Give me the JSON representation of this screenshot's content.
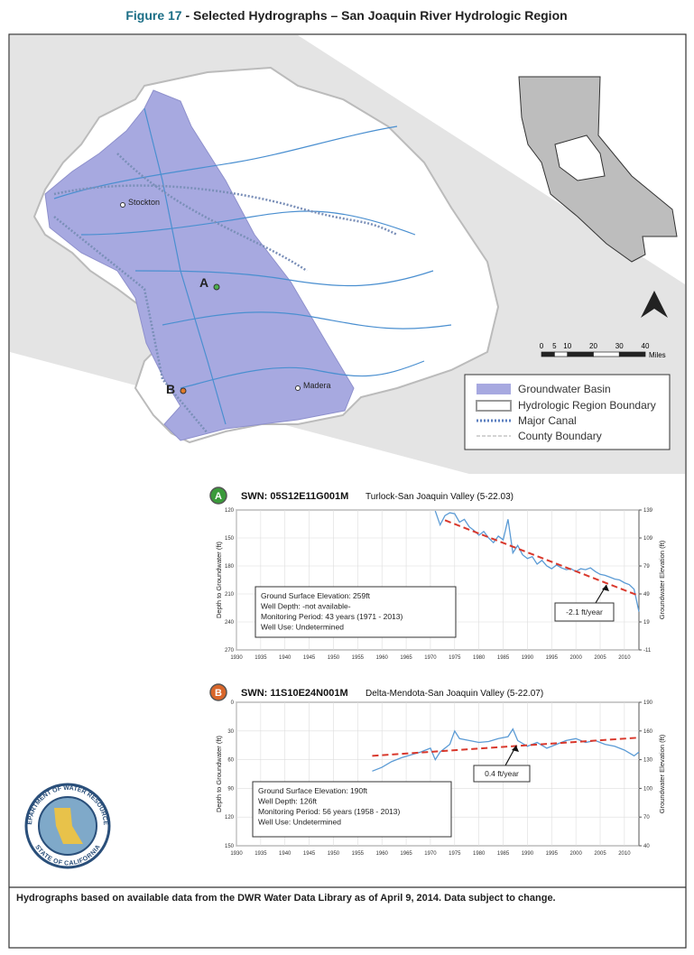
{
  "figure_number": "Figure 17",
  "title": "- Selected Hydrographs – San Joaquin River Hydrologic Region",
  "map": {
    "labels": {
      "stockton": "Stockton",
      "madera": "Madera",
      "a": "A",
      "b": "B"
    },
    "scale": {
      "ticks": [
        0,
        5,
        10,
        20,
        30,
        40
      ],
      "unit": "Miles"
    },
    "legend": [
      "Groundwater Basin",
      "Hydrologic Region Boundary",
      "Major Canal",
      "County Boundary"
    ]
  },
  "chart_data": [
    {
      "type": "line",
      "marker": "A",
      "swn": "SWN: 05S12E11G001M",
      "basin": "Turlock-San Joaquin Valley (5-22.03)",
      "ylabel": "Depth to Groundwater (ft)",
      "y2label": "Groundwater Elevation (ft)",
      "xlim": [
        1930,
        2013
      ],
      "xticks": [
        1930,
        1935,
        1940,
        1945,
        1950,
        1955,
        1960,
        1965,
        1970,
        1975,
        1980,
        1985,
        1990,
        1995,
        2000,
        2005,
        2010
      ],
      "ylim": [
        120,
        270
      ],
      "y_inverted": true,
      "yticks": [
        120,
        150,
        180,
        210,
        240,
        270
      ],
      "y2lim": [
        -11,
        139
      ],
      "y2ticks": [
        139,
        109,
        79,
        49,
        19,
        -11
      ],
      "grid": true,
      "x": [
        1971,
        1972,
        1973,
        1974,
        1975,
        1976,
        1977,
        1978,
        1979,
        1980,
        1981,
        1982,
        1983,
        1984,
        1985,
        1986,
        1987,
        1988,
        1989,
        1990,
        1991,
        1992,
        1993,
        1994,
        1995,
        1996,
        1997,
        1998,
        1999,
        2000,
        2001,
        2002,
        2003,
        2004,
        2005,
        2006,
        2007,
        2008,
        2009,
        2010,
        2011,
        2012,
        2013
      ],
      "series": [
        {
          "color": "#5b9bd5",
          "values": [
            121,
            136,
            126,
            123,
            124,
            133,
            130,
            138,
            142,
            147,
            143,
            150,
            155,
            148,
            152,
            130,
            166,
            158,
            168,
            172,
            170,
            178,
            174,
            180,
            183,
            179,
            182,
            184,
            183,
            186,
            183,
            184,
            182,
            186,
            189,
            190,
            192,
            194,
            195,
            198,
            200,
            205,
            229
          ]
        },
        {
          "color": "#d9382c",
          "style": "dashed",
          "x": [
            1973,
            2013
          ],
          "values": [
            131,
            212
          ]
        }
      ],
      "annotation": "-2.1 ft/year",
      "info": [
        "Ground Surface Elevation: 259ft",
        "Well Depth: -not available-",
        "Monitoring Period: 43 years (1971 - 2013)",
        "Well Use: Undetermined"
      ]
    },
    {
      "type": "line",
      "marker": "B",
      "swn": "SWN: 11S10E24N001M",
      "basin": "Delta-Mendota-San Joaquin Valley (5-22.07)",
      "ylabel": "Depth to Groundwater (ft)",
      "y2label": "Groundwater Elevation (ft)",
      "xlim": [
        1930,
        2013
      ],
      "xticks": [
        1930,
        1935,
        1940,
        1945,
        1950,
        1955,
        1960,
        1965,
        1970,
        1975,
        1980,
        1985,
        1990,
        1995,
        2000,
        2005,
        2010
      ],
      "ylim": [
        0,
        150
      ],
      "y_inverted": true,
      "yticks": [
        0,
        30,
        60,
        90,
        120,
        150
      ],
      "y2lim": [
        40,
        190
      ],
      "y2ticks": [
        190,
        160,
        130,
        100,
        70,
        40
      ],
      "grid": true,
      "x": [
        1958,
        1960,
        1962,
        1964,
        1966,
        1968,
        1970,
        1971,
        1972,
        1974,
        1975,
        1976,
        1978,
        1980,
        1982,
        1984,
        1986,
        1987,
        1988,
        1990,
        1992,
        1994,
        1996,
        1998,
        2000,
        2002,
        2004,
        2006,
        2008,
        2010,
        2012,
        2013
      ],
      "series": [
        {
          "color": "#5b9bd5",
          "values": [
            72,
            68,
            62,
            58,
            55,
            52,
            48,
            60,
            52,
            44,
            30,
            38,
            40,
            42,
            41,
            38,
            36,
            28,
            40,
            46,
            42,
            48,
            44,
            40,
            38,
            42,
            40,
            44,
            46,
            50,
            56,
            52
          ]
        },
        {
          "color": "#d9382c",
          "style": "dashed",
          "x": [
            1958,
            2013
          ],
          "values": [
            56,
            37
          ]
        }
      ],
      "annotation": "0.4 ft/year",
      "info": [
        "Ground Surface Elevation: 190ft",
        "Well Depth: 126ft",
        "Monitoring Period: 56 years (1958 - 2013)",
        "Well Use: Undetermined"
      ]
    }
  ],
  "seal": {
    "top": "DEPARTMENT OF WATER RESOURCES",
    "bottom": "STATE OF CALIFORNIA"
  },
  "footer": "Hydrographs based on available data from the DWR Water Data Library as of April 9, 2014.  Data subject to change."
}
